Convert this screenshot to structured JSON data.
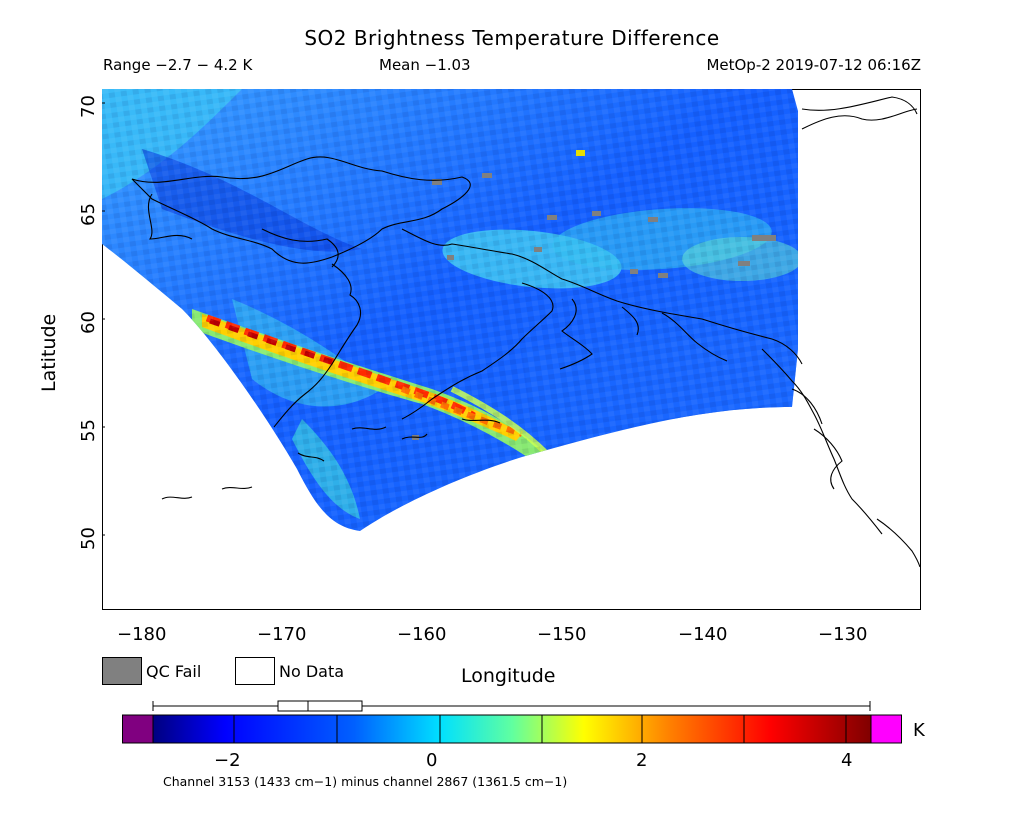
{
  "title": "SO2 Brightness Temperature Difference",
  "header": {
    "range": "Range −2.7 − 4.2 K",
    "mean": "Mean −1.03",
    "stamp": "MetOp-2 2019-07-12 06:16Z"
  },
  "axes": {
    "xlabel": "Longitude",
    "ylabel": "Latitude",
    "xticks": [
      "−180",
      "−170",
      "−160",
      "−150",
      "−140",
      "−130"
    ],
    "yticks": [
      "70",
      "65",
      "60",
      "55",
      "50"
    ]
  },
  "legend": {
    "qc_fail": "QC Fail",
    "no_data": "No Data",
    "qc_color": "#808080",
    "nodata_color": "#ffffff"
  },
  "colorbar": {
    "ticks": [
      "−2",
      "0",
      "2",
      "4"
    ],
    "unit": "K",
    "under_color": "#800080",
    "over_color": "#ff00ff",
    "colors": [
      "#000080",
      "#0000ff",
      "#0080ff",
      "#00ffff",
      "#80ff80",
      "#ffff00",
      "#ff8000",
      "#ff0000",
      "#800000"
    ],
    "range": [
      -2.8,
      4.3
    ]
  },
  "footnote": "Channel 3153 (1433 cm−1) minus channel 2867 (1361.5 cm−1)",
  "map": {
    "lon_range": [
      -183.5,
      -125.3
    ],
    "lat_range": [
      46.6,
      70.8
    ]
  }
}
